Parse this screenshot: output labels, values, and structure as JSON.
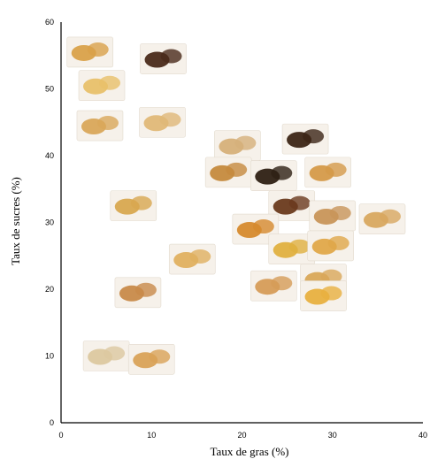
{
  "chart_data": {
    "type": "scatter",
    "title": "",
    "xlabel": "Taux de gras (%)",
    "ylabel": "Taux de sucres  (%)",
    "xlim": [
      0,
      40
    ],
    "ylim": [
      0,
      60
    ],
    "x_ticks": [
      0,
      10,
      20,
      30,
      40
    ],
    "y_ticks": [
      0,
      10,
      20,
      30,
      40,
      50,
      60
    ],
    "grid": false,
    "points": [
      {
        "x": 3.2,
        "y": 55.5,
        "kind": "madeleine",
        "color": "#d9a14a"
      },
      {
        "x": 11.3,
        "y": 54.5,
        "kind": "choc-cake",
        "color": "#4a2a1a"
      },
      {
        "x": 4.5,
        "y": 50.5,
        "kind": "sponge-finger",
        "color": "#e8c06a"
      },
      {
        "x": 4.3,
        "y": 44.5,
        "kind": "biscuit",
        "color": "#d9a75a"
      },
      {
        "x": 11.2,
        "y": 45.0,
        "kind": "boudoir",
        "color": "#e0b878"
      },
      {
        "x": 19.5,
        "y": 41.5,
        "kind": "cookie",
        "color": "#d6b07a"
      },
      {
        "x": 27.0,
        "y": 42.5,
        "kind": "choc-bar",
        "color": "#3c2516"
      },
      {
        "x": 18.5,
        "y": 37.5,
        "kind": "wafer-stick",
        "color": "#c58a3e"
      },
      {
        "x": 23.5,
        "y": 37.0,
        "kind": "choc-biscuit",
        "color": "#2e2014"
      },
      {
        "x": 29.5,
        "y": 37.5,
        "kind": "biscuit-stick",
        "color": "#d59a4a"
      },
      {
        "x": 8.0,
        "y": 32.5,
        "kind": "finger",
        "color": "#d8a850"
      },
      {
        "x": 25.5,
        "y": 32.5,
        "kind": "brownie",
        "color": "#6a3a1e"
      },
      {
        "x": 30.0,
        "y": 31.0,
        "kind": "choc-chip",
        "color": "#c8955a"
      },
      {
        "x": 35.5,
        "y": 30.5,
        "kind": "shortbread",
        "color": "#d8a860"
      },
      {
        "x": 21.5,
        "y": 29.0,
        "kind": "gaufre",
        "color": "#d68a2e"
      },
      {
        "x": 25.5,
        "y": 26.0,
        "kind": "butter-biscuit",
        "color": "#e0b040"
      },
      {
        "x": 29.8,
        "y": 26.5,
        "kind": "galette",
        "color": "#e0a84a"
      },
      {
        "x": 14.5,
        "y": 24.5,
        "kind": "cracker",
        "color": "#e0b060"
      },
      {
        "x": 23.5,
        "y": 20.5,
        "kind": "round-biscuit",
        "color": "#d69c58"
      },
      {
        "x": 29.0,
        "y": 21.5,
        "kind": "pretzel",
        "color": "#d9a85a"
      },
      {
        "x": 8.5,
        "y": 19.5,
        "kind": "wafer",
        "color": "#c88a4a"
      },
      {
        "x": 29.0,
        "y": 19.0,
        "kind": "ring-biscuit",
        "color": "#e8b040"
      },
      {
        "x": 5.0,
        "y": 10.0,
        "kind": "plain-cracker",
        "color": "#dcc8a0"
      },
      {
        "x": 10.0,
        "y": 9.5,
        "kind": "butter-round",
        "color": "#d9a258"
      }
    ]
  }
}
